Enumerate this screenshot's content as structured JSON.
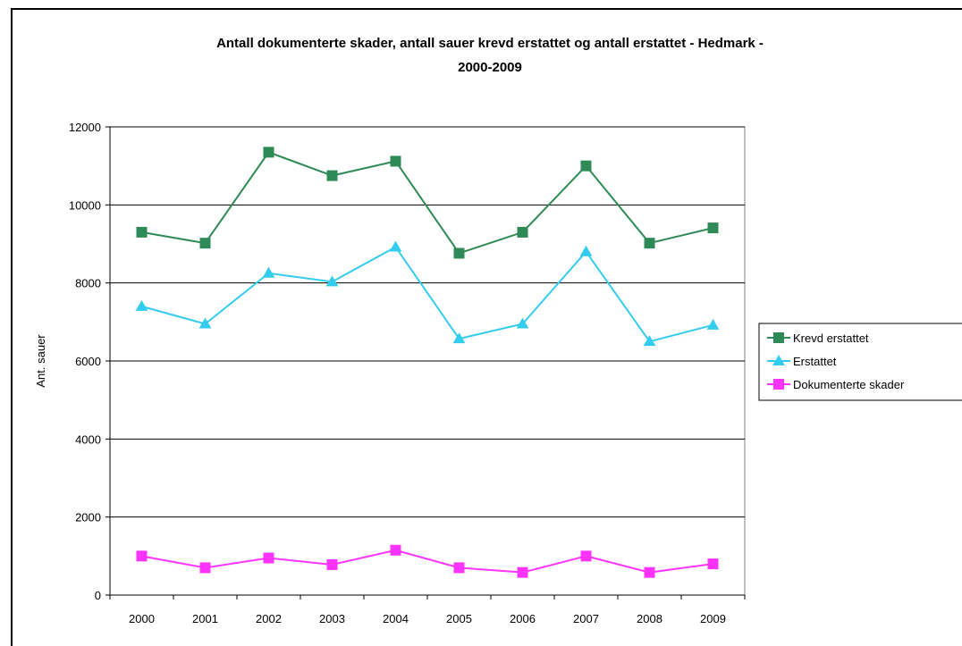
{
  "chart_data": {
    "type": "line",
    "title_lines": [
      "Antall dokumenterte skader, antall sauer krevd erstattet og antall erstattet - Hedmark -",
      "2000-2009"
    ],
    "xlabel": "",
    "ylabel": "Ant. sauer",
    "categories": [
      "2000",
      "2001",
      "2002",
      "2003",
      "2004",
      "2005",
      "2006",
      "2007",
      "2008",
      "2009"
    ],
    "ylim": [
      0,
      12000
    ],
    "yticks": [
      "0",
      "2000",
      "4000",
      "6000",
      "8000",
      "10000",
      "12000"
    ],
    "grid": true,
    "legend_position": "right",
    "series": [
      {
        "name": "Krevd erstattet",
        "marker": "square",
        "color": "#2e8b57",
        "values": [
          9300,
          9020,
          11350,
          10750,
          11120,
          8760,
          9300,
          11000,
          9020,
          9410
        ]
      },
      {
        "name": "Erstattet",
        "marker": "triangle",
        "color": "#33ccee",
        "values": [
          7400,
          6950,
          8250,
          8030,
          8920,
          6570,
          6950,
          8800,
          6500,
          6920
        ]
      },
      {
        "name": "Dokumenterte skader",
        "marker": "square",
        "color": "#ff33ff",
        "values": [
          1000,
          700,
          950,
          780,
          1150,
          700,
          580,
          1000,
          580,
          800
        ]
      }
    ]
  }
}
